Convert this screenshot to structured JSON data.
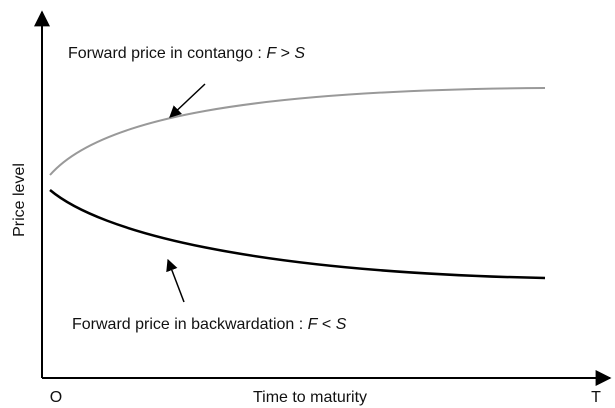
{
  "diagram": {
    "axes": {
      "y_label": "Price level",
      "x_label": "Time to maturity",
      "origin": "O",
      "end": "T"
    },
    "labels": [
      {
        "prefix": "Forward price in contango :",
        "left": "F",
        "op": ">",
        "right": "S"
      },
      {
        "prefix": "Forward price in backwardation :",
        "left": "F",
        "op": "<",
        "right": "S"
      }
    ]
  }
}
